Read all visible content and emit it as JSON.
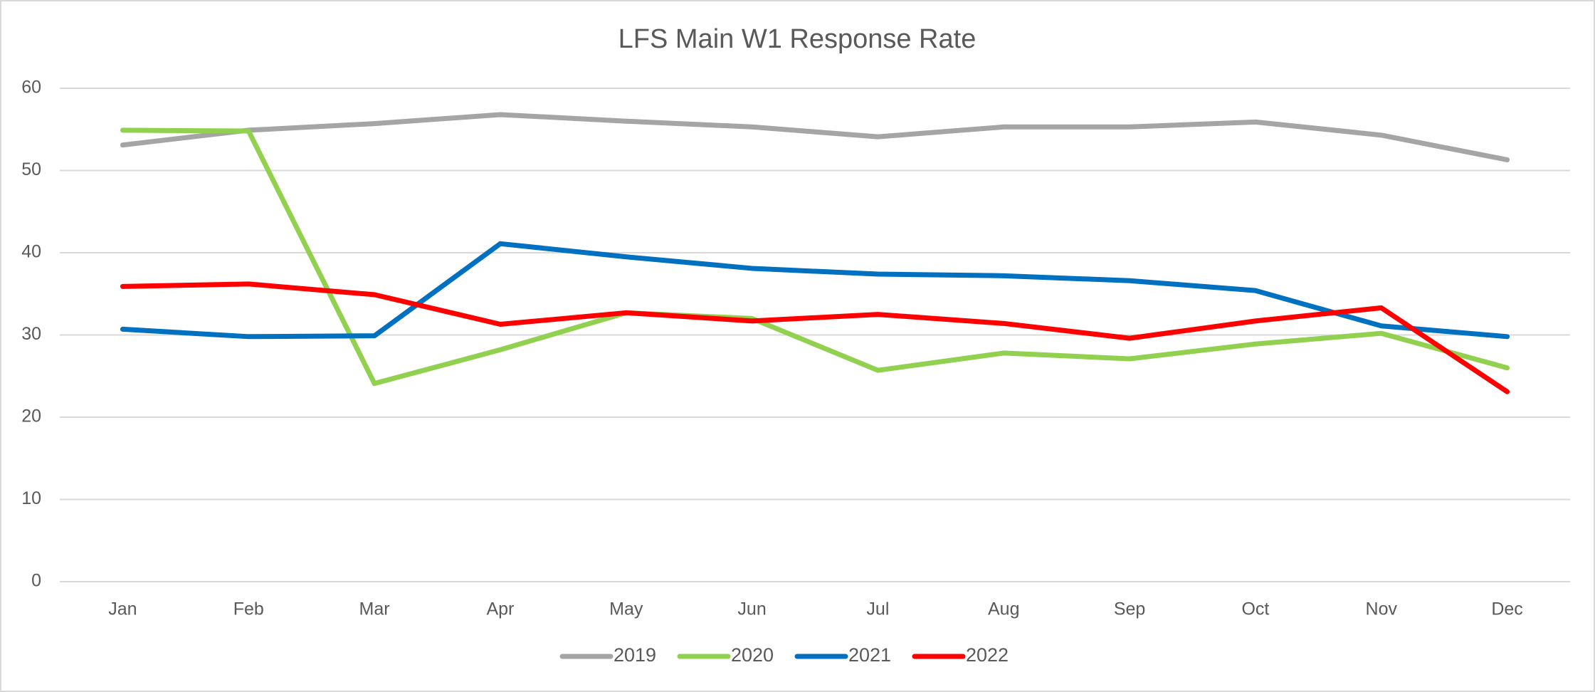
{
  "chart_data": {
    "type": "line",
    "title": "LFS Main W1 Response Rate",
    "categories": [
      "Jan",
      "Feb",
      "Mar",
      "Apr",
      "May",
      "Jun",
      "Jul",
      "Aug",
      "Sep",
      "Oct",
      "Nov",
      "Dec"
    ],
    "series": [
      {
        "name": "2019",
        "color": "#a5a5a5",
        "values": [
          53.1,
          54.9,
          55.7,
          56.8,
          56.0,
          55.3,
          54.1,
          55.3,
          55.3,
          55.9,
          54.3,
          51.3
        ]
      },
      {
        "name": "2020",
        "color": "#92d050",
        "values": [
          54.9,
          54.8,
          24.1,
          28.2,
          32.7,
          32.0,
          25.7,
          27.8,
          27.1,
          28.9,
          30.2,
          26.0
        ]
      },
      {
        "name": "2021",
        "color": "#0070c0",
        "values": [
          30.7,
          29.8,
          29.9,
          41.1,
          39.5,
          38.1,
          37.4,
          37.2,
          36.6,
          35.4,
          31.1,
          29.8
        ]
      },
      {
        "name": "2022",
        "color": "#ff0000",
        "values": [
          35.9,
          36.2,
          34.9,
          31.3,
          32.7,
          31.7,
          32.5,
          31.4,
          29.6,
          31.7,
          33.3,
          23.1
        ]
      }
    ],
    "ylim": [
      0,
      60
    ],
    "yticks": [
      0,
      10,
      20,
      30,
      40,
      50,
      60
    ],
    "grid": true,
    "legend": "bottom"
  }
}
